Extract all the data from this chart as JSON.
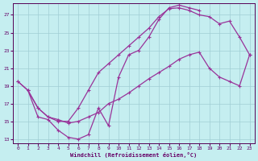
{
  "bg_color": "#c5eef0",
  "grid_color": "#a0cdd4",
  "line_color": "#993399",
  "xlabel": "Windchill (Refroidissement éolien,°C)",
  "xlim": [
    -0.5,
    23.5
  ],
  "ylim": [
    12.5,
    28.3
  ],
  "xticks": [
    0,
    1,
    2,
    3,
    4,
    5,
    6,
    7,
    8,
    9,
    10,
    11,
    12,
    13,
    14,
    15,
    16,
    17,
    18,
    19,
    20,
    21,
    22,
    23
  ],
  "yticks": [
    13,
    15,
    17,
    19,
    21,
    23,
    25,
    27
  ],
  "lines": [
    {
      "x": [
        0,
        1,
        2,
        3,
        4,
        5,
        6,
        7,
        8,
        9,
        10,
        11,
        12,
        13,
        14,
        15,
        16,
        17,
        18,
        19,
        20,
        21,
        22,
        23
      ],
      "y": [
        19.5,
        18.5,
        16.5,
        15.5,
        15.0,
        15.0,
        16.5,
        18.5,
        20.5,
        21.5,
        22.5,
        23.5,
        24.5,
        25.5,
        26.8,
        27.7,
        27.8,
        27.5,
        27.0,
        26.8,
        26.0,
        26.3,
        24.5,
        22.5
      ]
    },
    {
      "x": [
        0,
        1,
        2,
        3,
        4,
        5,
        6,
        7,
        8,
        9,
        10,
        11,
        12,
        13,
        14,
        15,
        16,
        17,
        18
      ],
      "y": [
        19.5,
        18.5,
        15.5,
        15.2,
        14.0,
        13.2,
        13.0,
        13.5,
        16.5,
        14.5,
        20.0,
        22.5,
        23.0,
        24.5,
        26.5,
        27.8,
        28.1,
        27.8,
        27.5
      ]
    },
    {
      "x": [
        1,
        2,
        3,
        4,
        5,
        6,
        7,
        8,
        9,
        10,
        11,
        12,
        13,
        14,
        15,
        16,
        17,
        18,
        19,
        20,
        21,
        22,
        23
      ],
      "y": [
        18.5,
        16.5,
        15.5,
        15.2,
        14.8,
        15.0,
        15.5,
        16.0,
        17.0,
        17.5,
        18.2,
        19.0,
        19.8,
        20.5,
        21.2,
        22.0,
        22.5,
        22.8,
        21.0,
        20.0,
        19.5,
        19.0,
        22.5
      ]
    }
  ]
}
